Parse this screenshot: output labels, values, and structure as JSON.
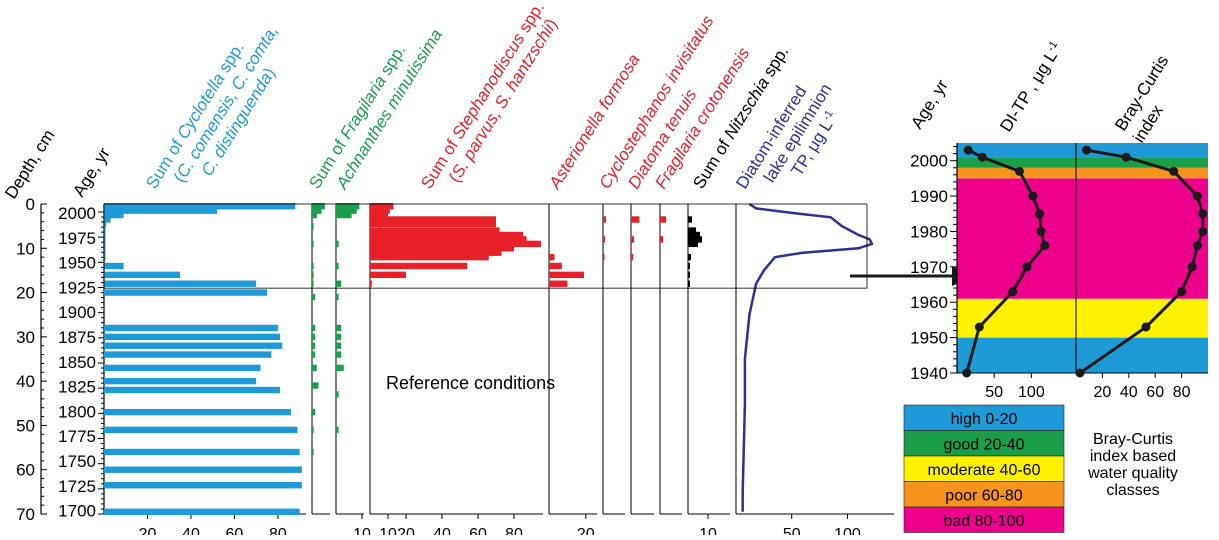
{
  "colors": {
    "cyclotella": "#1E9BD7",
    "fragilaria": "#1A9E49",
    "stephanodiscus": "#E8202A",
    "nitzschia": "#000000",
    "tp": "#2E3192",
    "axis": "#000000",
    "connector_arrow": "#1A1A1A",
    "right_line": "#1A1A1A"
  },
  "left_chart": {
    "depth_label": "Depth, cm",
    "age_label": "Age, yr",
    "depth_ticks": [
      "0",
      "10",
      "20",
      "30",
      "40",
      "50",
      "60",
      "70"
    ],
    "age_ticks": [
      "2000",
      "1975",
      "1950",
      "1925",
      "1900",
      "1875",
      "1850",
      "1825",
      "1800",
      "1775",
      "1750",
      "1725",
      "1700"
    ],
    "annotation": "Reference conditions",
    "panels": [
      {
        "key": "cyclotella",
        "label_lines": [
          [
            {
              "t": "Sum of ",
              "i": false
            },
            {
              "t": "Cyclotella",
              "i": true
            },
            {
              "t": " spp.",
              "i": false
            }
          ],
          [
            {
              "t": "(",
              "i": false
            },
            {
              "t": "C. comensis, C. comta,",
              "i": true
            }
          ],
          [
            {
              "t": "C. distinguenda",
              "i": true
            },
            {
              "t": ")",
              "i": false
            }
          ]
        ],
        "tick_labels": [
          "20",
          "40",
          "60",
          "80"
        ]
      },
      {
        "key": "fragilaria",
        "label_lines": [
          [
            {
              "t": "Sum of ",
              "i": false
            },
            {
              "t": "Fragilaria",
              "i": true
            },
            {
              "t": " spp.",
              "i": false
            }
          ]
        ],
        "tick_labels": []
      },
      {
        "key": "achnanthes",
        "label_lines": [
          [
            {
              "t": "Achnanthes minutissima",
              "i": true
            }
          ]
        ],
        "tick_labels": [
          "10"
        ]
      },
      {
        "key": "stephanodiscus",
        "label_lines": [
          [
            {
              "t": "Sum of ",
              "i": false
            },
            {
              "t": "Stephanodiscus",
              "i": true
            },
            {
              "t": " spp.",
              "i": false
            }
          ],
          [
            {
              "t": "(",
              "i": false
            },
            {
              "t": "S. parvus, S. hantzschii",
              "i": true
            },
            {
              "t": ")",
              "i": false
            }
          ]
        ],
        "tick_labels": [
          "10",
          "20",
          "40",
          "60",
          "80"
        ]
      },
      {
        "key": "asterionella",
        "label_lines": [
          [
            {
              "t": "Asterionella formosa",
              "i": true
            }
          ]
        ],
        "tick_labels": [
          "20"
        ]
      },
      {
        "key": "cyclostephanos",
        "label_lines": [
          [
            {
              "t": "Cyclostephanos invisitatus",
              "i": true
            }
          ]
        ],
        "tick_labels": []
      },
      {
        "key": "diatoma",
        "label_lines": [
          [
            {
              "t": "Diatoma tenuis",
              "i": true
            }
          ]
        ],
        "tick_labels": []
      },
      {
        "key": "fragcroto",
        "label_lines": [
          [
            {
              "t": "Fragilaria crotonensis",
              "i": true
            }
          ]
        ],
        "tick_labels": []
      },
      {
        "key": "nitzschia",
        "label_lines": [
          [
            {
              "t": "Sum of ",
              "i": false
            },
            {
              "t": "Nitzschia",
              "i": true
            },
            {
              "t": " spp.",
              "i": false
            }
          ]
        ],
        "tick_labels": [
          "10"
        ]
      },
      {
        "key": "tp",
        "label_lines": [
          [
            {
              "t": "Diatom-inferred",
              "i": false
            }
          ],
          [
            {
              "t": "lake epilimnion",
              "i": false
            }
          ],
          [
            {
              "t": "TP, μg L",
              "i": false
            },
            {
              "t": "-1",
              "i": false,
              "sup": true
            }
          ]
        ],
        "tick_labels": [
          "50",
          "100"
        ]
      }
    ]
  },
  "chart_data": [
    {
      "type": "bar",
      "orientation": "horizontal",
      "y_axis": "depth",
      "ylabel": "Depth, cm",
      "ylim": [
        0,
        70
      ],
      "series": [
        {
          "name": "Sum of Cyclotella spp. (C. comensis, C. comta, C. distinguenda)",
          "depth": [
            0.5,
            1.5,
            2.5,
            3.5,
            4.5,
            6,
            7,
            8,
            9,
            10,
            11,
            12,
            14,
            16,
            18,
            20,
            28,
            30,
            32,
            34,
            37,
            40,
            42,
            47,
            51,
            56,
            60,
            63.5,
            69.5
          ],
          "values": [
            88,
            52,
            9,
            3,
            1,
            0.5,
            0.5,
            0.5,
            0.5,
            0.5,
            0.5,
            0.5,
            9,
            35,
            70,
            75,
            80,
            81,
            82,
            77,
            72,
            70,
            81,
            86,
            89,
            90,
            91,
            91,
            90
          ]
        },
        {
          "name": "Sum of Fragilaria spp.",
          "depth": [
            0.5,
            1.5,
            2.5,
            5,
            9,
            14,
            16,
            18,
            21,
            28,
            30,
            32,
            34,
            37,
            41,
            47,
            51,
            56
          ],
          "values": [
            8,
            6,
            3,
            1,
            1,
            1,
            1,
            1,
            2,
            2,
            2,
            2,
            2,
            3,
            4,
            2,
            1,
            1
          ]
        },
        {
          "name": "Achnanthes minutissima",
          "depth": [
            0.5,
            1.5,
            2.5,
            9,
            14,
            18,
            21,
            28,
            30,
            32,
            34,
            37,
            43,
            51
          ],
          "values": [
            9,
            8,
            6,
            1,
            1,
            2,
            1,
            2,
            2,
            2,
            2,
            3,
            1,
            1
          ]
        },
        {
          "name": "Sum of Stephanodiscus spp. (S. parvus, S. hantzschii)",
          "depth": [
            0.5,
            1.5,
            2.5,
            3.5,
            4.5,
            6,
            7,
            8,
            9,
            10,
            11,
            12,
            14,
            16,
            18
          ],
          "values": [
            13,
            11,
            10,
            70,
            70,
            72,
            85,
            87,
            95,
            80,
            73,
            66,
            54,
            20,
            1
          ]
        },
        {
          "name": "Asterionella formosa",
          "depth": [
            12,
            14,
            16,
            18
          ],
          "values": [
            3,
            7,
            19,
            10
          ]
        },
        {
          "name": "Cyclostephanos invisitatus",
          "depth": [
            3.5,
            8,
            12
          ],
          "values": [
            1.5,
            1,
            0.5
          ]
        },
        {
          "name": "Diatoma tenuis",
          "depth": [
            3.5,
            8,
            12
          ],
          "values": [
            4,
            1.5,
            1
          ]
        },
        {
          "name": "Fragilaria crotonensis",
          "depth": [
            3.5,
            8
          ],
          "values": [
            3,
            1.5
          ]
        },
        {
          "name": "Sum of Nitzschia spp.",
          "depth": [
            3.5,
            6,
            7,
            8,
            9,
            12,
            14,
            16,
            18
          ],
          "values": [
            2,
            4,
            6,
            7,
            5,
            1.5,
            1,
            1,
            1
          ]
        }
      ]
    },
    {
      "type": "line",
      "orientation": "vertical",
      "name": "Diatom-inferred lake epilimnion TP, μg L-1",
      "y_axis": "depth",
      "x": [
        12,
        18,
        50,
        85,
        95,
        110,
        120,
        122,
        110,
        60,
        35,
        25,
        18,
        12,
        8,
        8,
        7,
        6,
        6
      ],
      "y": [
        0,
        1,
        2,
        3,
        5,
        7,
        8,
        9,
        10,
        11,
        12,
        15,
        18,
        25,
        35,
        45,
        55,
        65,
        69.5
      ],
      "xlim": [
        0,
        140
      ],
      "ylim": [
        0,
        70
      ]
    },
    {
      "type": "line",
      "name": "DI-TP, μg L-1",
      "ylabel": "Age, yr",
      "y": [
        2003,
        2001,
        1997,
        1990,
        1985,
        1980,
        1976,
        1970,
        1963,
        1953,
        1940
      ],
      "x": [
        15,
        34,
        84,
        102,
        111,
        113,
        118,
        94,
        75,
        30,
        13
      ],
      "xlim": [
        0,
        160
      ],
      "ylim": [
        1940,
        2005
      ],
      "bands": [
        {
          "label": "high 0-20",
          "color": "#1E9BD7",
          "from": 1940,
          "to": 1950
        },
        {
          "label": "moderate 40-60",
          "color": "#FFF200",
          "from": 1950,
          "to": 1961
        },
        {
          "label": "bad 80-100",
          "color": "#EC008C",
          "from": 1961,
          "to": 1995
        },
        {
          "label": "poor 60-80",
          "color": "#F7941D",
          "from": 1995,
          "to": 1998
        },
        {
          "label": "good 20-40",
          "color": "#1A9E49",
          "from": 1998,
          "to": 2001
        },
        {
          "label": "high 0-20",
          "color": "#1E9BD7",
          "from": 2001,
          "to": 2005
        }
      ]
    },
    {
      "type": "line",
      "name": "Bray-Curtis index",
      "ylabel": "Age, yr",
      "y": [
        2003,
        2001,
        1997,
        1990,
        1985,
        1980,
        1976,
        1970,
        1963,
        1953,
        1940
      ],
      "x": [
        8,
        38,
        74,
        92,
        96,
        96,
        92,
        88,
        80,
        53,
        3
      ],
      "xlim": [
        0,
        100
      ],
      "ylim": [
        1940,
        2005
      ]
    }
  ],
  "right_chart": {
    "age_label": "Age, yr",
    "ditp_label": "DI-TP , μg L",
    "ditp_sup": "-1",
    "bray_label_lines": [
      "Bray-Curtis",
      "index"
    ],
    "age_ticks": [
      "2000",
      "1990",
      "1980",
      "1970",
      "1960",
      "1950",
      "1940"
    ],
    "ditp_tick_labels": [
      "50",
      "100"
    ],
    "bray_tick_labels": [
      "20",
      "40",
      "60",
      "80"
    ]
  },
  "legend": {
    "title_lines": [
      "Bray-Curtis",
      "index based",
      "water quality",
      "classes"
    ],
    "items": [
      {
        "label": "high 0-20",
        "color": "#1E9BD7"
      },
      {
        "label": "good 20-40",
        "color": "#1A9E49"
      },
      {
        "label": "moderate 40-60",
        "color": "#FFF200"
      },
      {
        "label": "poor 60-80",
        "color": "#F7941D"
      },
      {
        "label": "bad 80-100",
        "color": "#EC008C"
      }
    ]
  }
}
